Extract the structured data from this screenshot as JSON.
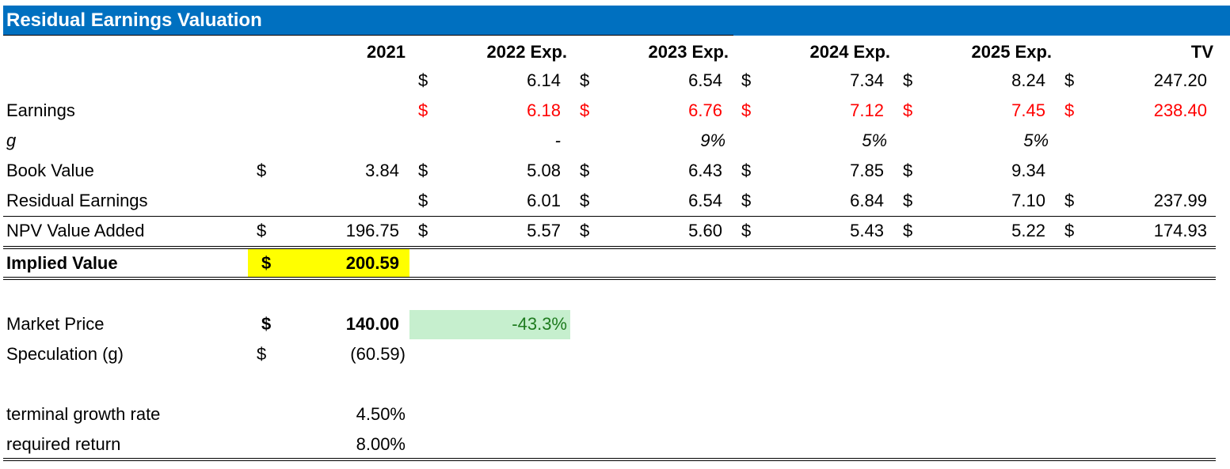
{
  "title": "Residual Earnings Valuation",
  "headers": {
    "y2021": "2021",
    "y2022": "2022 Exp.",
    "y2023": "2023 Exp.",
    "y2024": "2024 Exp.",
    "y2025": "2025 Exp.",
    "tv": "TV"
  },
  "currency_symbol": "$",
  "rows": {
    "eps_estimates": {
      "label": "",
      "values": [
        "6.14",
        "6.54",
        "7.34",
        "8.24",
        "247.20"
      ]
    },
    "earnings": {
      "label": "Earnings",
      "values": [
        "6.18",
        "6.76",
        "7.12",
        "7.45",
        "238.40"
      ]
    },
    "growth": {
      "label": "g",
      "values": [
        "-",
        "9%",
        "5%",
        "5%"
      ]
    },
    "book_value": {
      "label": "Book Value",
      "values": [
        "3.84",
        "5.08",
        "6.43",
        "7.85",
        "9.34"
      ]
    },
    "residual_earnings": {
      "label": "Residual Earnings",
      "values": [
        "6.01",
        "6.54",
        "6.84",
        "7.10",
        "237.99"
      ]
    },
    "npv_value_added": {
      "label": "NPV Value Added",
      "values": [
        "196.75",
        "5.57",
        "5.60",
        "5.43",
        "5.22",
        "174.93"
      ]
    },
    "implied_value": {
      "label": "Implied Value",
      "value": "200.59"
    },
    "market_price": {
      "label": "Market Price",
      "value": "140.00",
      "difference": "-43.3%"
    },
    "speculation": {
      "label": "Speculation (g)",
      "value": "(60.59)"
    },
    "terminal_growth_rate": {
      "label": "terminal growth rate",
      "value": "4.50%"
    },
    "required_return": {
      "label": "required return",
      "value": "8.00%"
    }
  },
  "colors": {
    "title_bar": "#0070C0",
    "earnings_text": "#FF0000",
    "implied_value_highlight": "#FFFF00",
    "market_diff_fill": "#C6EFCE",
    "market_diff_text": "#1E7B1E"
  }
}
